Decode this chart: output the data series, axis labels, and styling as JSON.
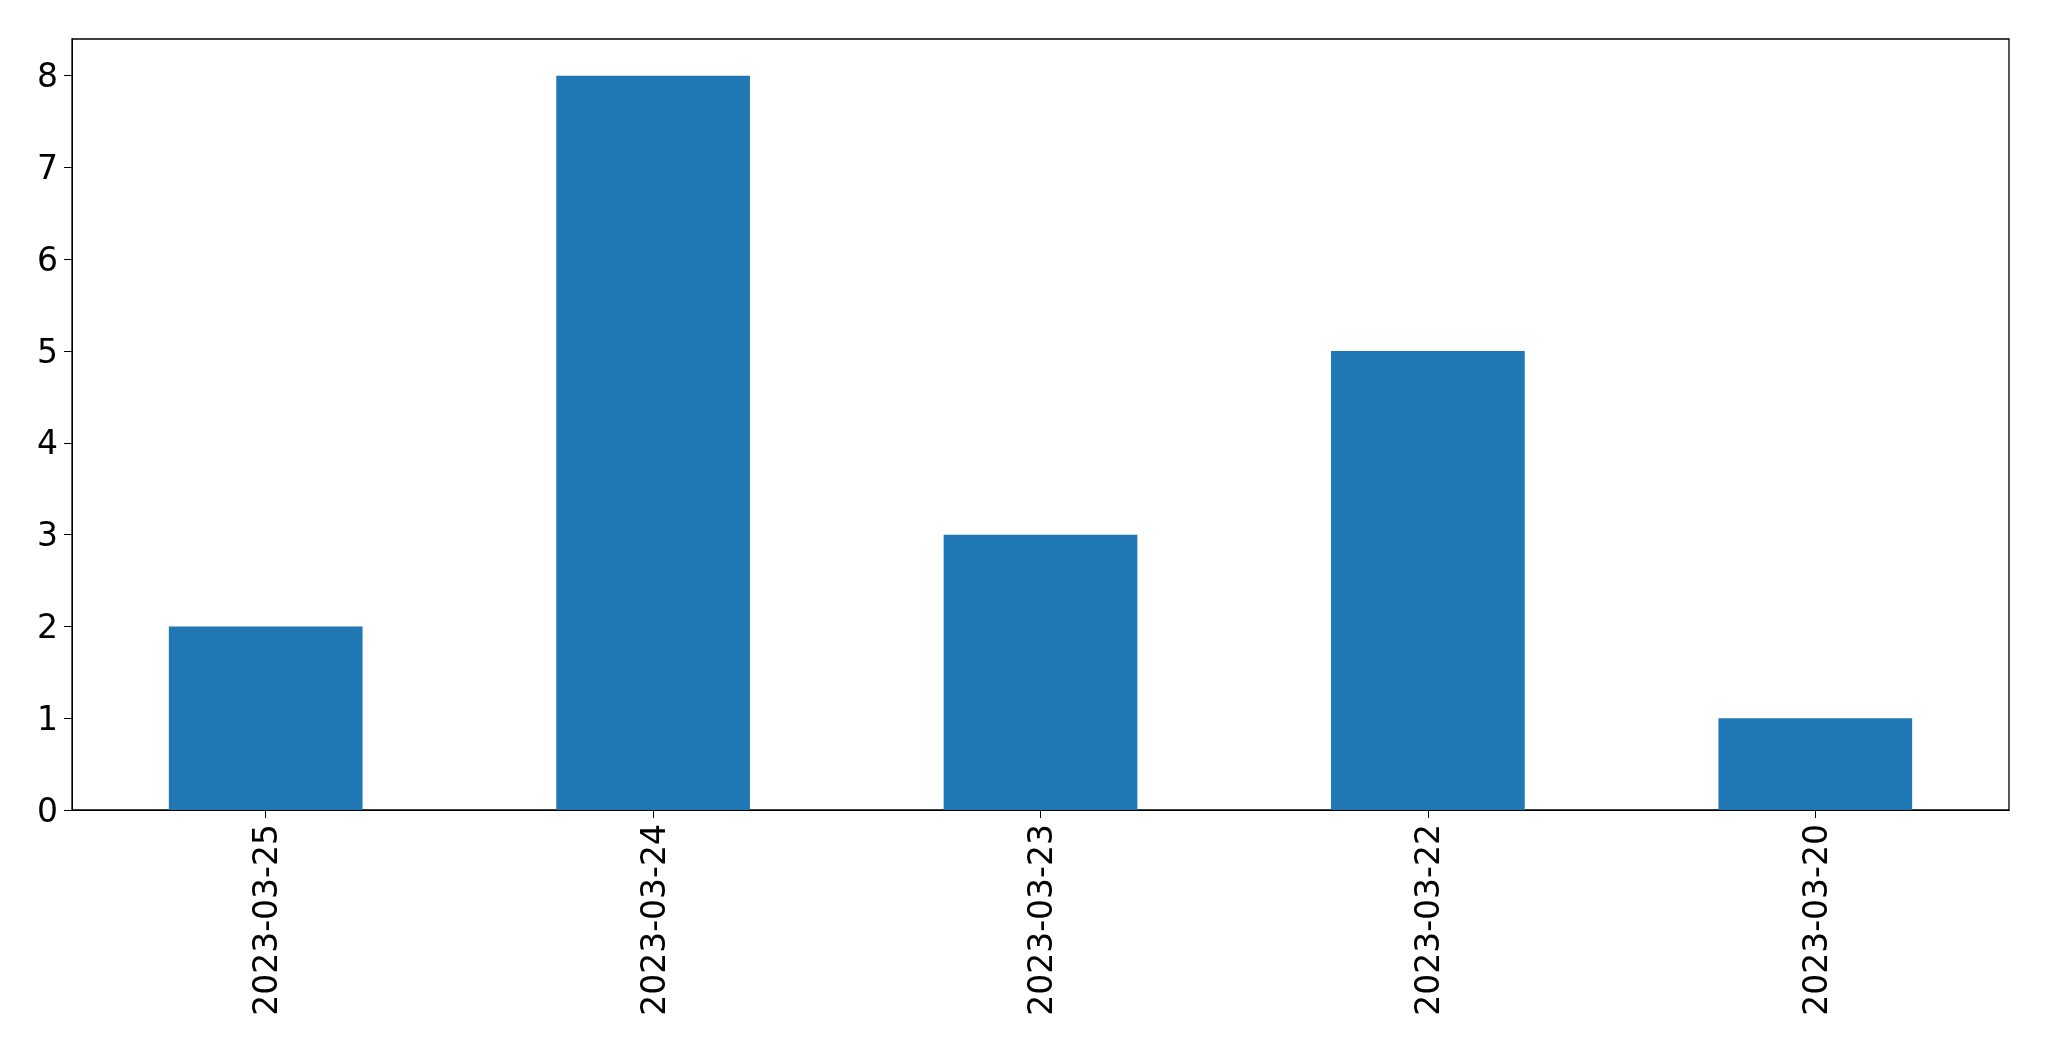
{
  "chart_data": {
    "type": "bar",
    "categories": [
      "2023-03-25",
      "2023-03-24",
      "2023-03-23",
      "2023-03-22",
      "2023-03-20"
    ],
    "values": [
      2,
      8,
      3,
      5,
      1
    ],
    "color": "#1f77b4",
    "ylim": [
      0,
      8.4
    ],
    "yticks": [
      0,
      1,
      2,
      3,
      4,
      5,
      6,
      7,
      8
    ],
    "grid": false
  }
}
